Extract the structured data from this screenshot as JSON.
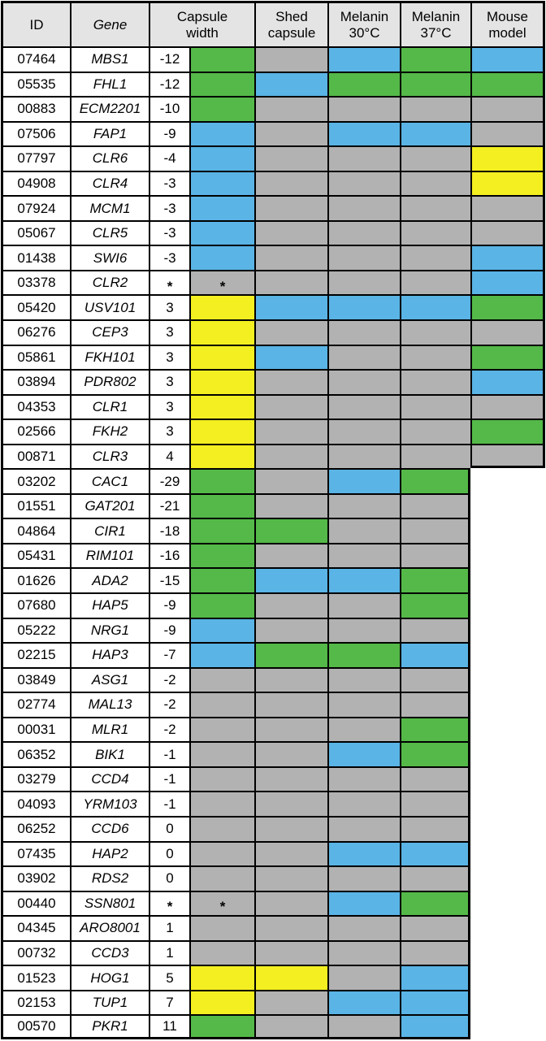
{
  "chart_data": {
    "type": "table",
    "title": "Gene deletion phenotype table",
    "columns": [
      "ID",
      "Gene",
      "Capsule width",
      "Shed capsule",
      "Melanin 30°C",
      "Melanin 37°C",
      "Mouse model"
    ],
    "header": {
      "id": "ID",
      "gene": "Gene",
      "capsule_width": "Capsule\nwidth",
      "shed_capsule": "Shed\ncapsule",
      "melanin_30": "Melanin\n30°C",
      "melanin_37": "Melanin\n37°C",
      "mouse_model": "Mouse\nmodel"
    },
    "color_key": {
      "green": "#54b948",
      "blue": "#5ab4e5",
      "yellow": "#f3ef21",
      "gray": "#b2b2b2"
    },
    "header_bg": "#e4e4e4",
    "asterisk_symbol": "*",
    "rows": [
      {
        "id": "07464",
        "gene": "MBS1",
        "capsule_width": "-12",
        "asterisk": false,
        "colors": {
          "capsule": "green",
          "shed": "gray",
          "melanin30": "blue",
          "melanin37": "green",
          "mouse": "blue"
        }
      },
      {
        "id": "05535",
        "gene": "FHL1",
        "capsule_width": "-12",
        "asterisk": false,
        "colors": {
          "capsule": "green",
          "shed": "blue",
          "melanin30": "green",
          "melanin37": "green",
          "mouse": "green"
        }
      },
      {
        "id": "00883",
        "gene": "ECM2201",
        "capsule_width": "-10",
        "asterisk": false,
        "colors": {
          "capsule": "green",
          "shed": "gray",
          "melanin30": "gray",
          "melanin37": "gray",
          "mouse": "gray"
        }
      },
      {
        "id": "07506",
        "gene": "FAP1",
        "capsule_width": "-9",
        "asterisk": false,
        "colors": {
          "capsule": "blue",
          "shed": "gray",
          "melanin30": "blue",
          "melanin37": "blue",
          "mouse": "gray"
        }
      },
      {
        "id": "07797",
        "gene": "CLR6",
        "capsule_width": "-4",
        "asterisk": false,
        "colors": {
          "capsule": "blue",
          "shed": "gray",
          "melanin30": "gray",
          "melanin37": "gray",
          "mouse": "yellow"
        }
      },
      {
        "id": "04908",
        "gene": "CLR4",
        "capsule_width": "-3",
        "asterisk": false,
        "colors": {
          "capsule": "blue",
          "shed": "gray",
          "melanin30": "gray",
          "melanin37": "gray",
          "mouse": "yellow"
        }
      },
      {
        "id": "07924",
        "gene": "MCM1",
        "capsule_width": "-3",
        "asterisk": false,
        "colors": {
          "capsule": "blue",
          "shed": "gray",
          "melanin30": "gray",
          "melanin37": "gray",
          "mouse": "gray"
        }
      },
      {
        "id": "05067",
        "gene": "CLR5",
        "capsule_width": "-3",
        "asterisk": false,
        "colors": {
          "capsule": "blue",
          "shed": "gray",
          "melanin30": "gray",
          "melanin37": "gray",
          "mouse": "gray"
        }
      },
      {
        "id": "01438",
        "gene": "SWI6",
        "capsule_width": "-3",
        "asterisk": false,
        "colors": {
          "capsule": "blue",
          "shed": "gray",
          "melanin30": "gray",
          "melanin37": "gray",
          "mouse": "blue"
        }
      },
      {
        "id": "03378",
        "gene": "CLR2",
        "capsule_width": "*",
        "asterisk": true,
        "colors": {
          "capsule": "gray",
          "shed": "gray",
          "melanin30": "gray",
          "melanin37": "gray",
          "mouse": "blue"
        }
      },
      {
        "id": "05420",
        "gene": "USV101",
        "capsule_width": "3",
        "asterisk": false,
        "colors": {
          "capsule": "yellow",
          "shed": "blue",
          "melanin30": "blue",
          "melanin37": "blue",
          "mouse": "green"
        }
      },
      {
        "id": "06276",
        "gene": "CEP3",
        "capsule_width": "3",
        "asterisk": false,
        "colors": {
          "capsule": "yellow",
          "shed": "gray",
          "melanin30": "gray",
          "melanin37": "gray",
          "mouse": "gray"
        }
      },
      {
        "id": "05861",
        "gene": "FKH101",
        "capsule_width": "3",
        "asterisk": false,
        "colors": {
          "capsule": "yellow",
          "shed": "blue",
          "melanin30": "gray",
          "melanin37": "gray",
          "mouse": "green"
        }
      },
      {
        "id": "03894",
        "gene": "PDR802",
        "capsule_width": "3",
        "asterisk": false,
        "colors": {
          "capsule": "yellow",
          "shed": "gray",
          "melanin30": "gray",
          "melanin37": "gray",
          "mouse": "blue"
        }
      },
      {
        "id": "04353",
        "gene": "CLR1",
        "capsule_width": "3",
        "asterisk": false,
        "colors": {
          "capsule": "yellow",
          "shed": "gray",
          "melanin30": "gray",
          "melanin37": "gray",
          "mouse": "gray"
        }
      },
      {
        "id": "02566",
        "gene": "FKH2",
        "capsule_width": "3",
        "asterisk": false,
        "colors": {
          "capsule": "yellow",
          "shed": "gray",
          "melanin30": "gray",
          "melanin37": "gray",
          "mouse": "green"
        }
      },
      {
        "id": "00871",
        "gene": "CLR3",
        "capsule_width": "4",
        "asterisk": false,
        "colors": {
          "capsule": "yellow",
          "shed": "gray",
          "melanin30": "gray",
          "melanin37": "gray",
          "mouse": "gray"
        }
      },
      {
        "id": "03202",
        "gene": "CAC1",
        "capsule_width": "-29",
        "asterisk": false,
        "colors": {
          "capsule": "green",
          "shed": "gray",
          "melanin30": "blue",
          "melanin37": "green",
          "mouse": null
        }
      },
      {
        "id": "01551",
        "gene": "GAT201",
        "capsule_width": "-21",
        "asterisk": false,
        "colors": {
          "capsule": "green",
          "shed": "gray",
          "melanin30": "gray",
          "melanin37": "gray",
          "mouse": null
        }
      },
      {
        "id": "04864",
        "gene": "CIR1",
        "capsule_width": "-18",
        "asterisk": false,
        "colors": {
          "capsule": "green",
          "shed": "green",
          "melanin30": "gray",
          "melanin37": "gray",
          "mouse": null
        }
      },
      {
        "id": "05431",
        "gene": "RIM101",
        "capsule_width": "-16",
        "asterisk": false,
        "colors": {
          "capsule": "green",
          "shed": "gray",
          "melanin30": "gray",
          "melanin37": "gray",
          "mouse": null
        }
      },
      {
        "id": "01626",
        "gene": "ADA2",
        "capsule_width": "-15",
        "asterisk": false,
        "colors": {
          "capsule": "green",
          "shed": "blue",
          "melanin30": "blue",
          "melanin37": "green",
          "mouse": null
        }
      },
      {
        "id": "07680",
        "gene": "HAP5",
        "capsule_width": "-9",
        "asterisk": false,
        "colors": {
          "capsule": "green",
          "shed": "gray",
          "melanin30": "gray",
          "melanin37": "green",
          "mouse": null
        }
      },
      {
        "id": "05222",
        "gene": "NRG1",
        "capsule_width": "-9",
        "asterisk": false,
        "colors": {
          "capsule": "blue",
          "shed": "gray",
          "melanin30": "gray",
          "melanin37": "gray",
          "mouse": null
        }
      },
      {
        "id": "02215",
        "gene": "HAP3",
        "capsule_width": "-7",
        "asterisk": false,
        "colors": {
          "capsule": "blue",
          "shed": "green",
          "melanin30": "green",
          "melanin37": "blue",
          "mouse": null
        }
      },
      {
        "id": "03849",
        "gene": "ASG1",
        "capsule_width": "-2",
        "asterisk": false,
        "colors": {
          "capsule": "gray",
          "shed": "gray",
          "melanin30": "gray",
          "melanin37": "gray",
          "mouse": null
        }
      },
      {
        "id": "02774",
        "gene": "MAL13",
        "capsule_width": "-2",
        "asterisk": false,
        "colors": {
          "capsule": "gray",
          "shed": "gray",
          "melanin30": "gray",
          "melanin37": "gray",
          "mouse": null
        }
      },
      {
        "id": "00031",
        "gene": "MLR1",
        "capsule_width": "-2",
        "asterisk": false,
        "colors": {
          "capsule": "gray",
          "shed": "gray",
          "melanin30": "gray",
          "melanin37": "green",
          "mouse": null
        }
      },
      {
        "id": "06352",
        "gene": "BIK1",
        "capsule_width": "-1",
        "asterisk": false,
        "colors": {
          "capsule": "gray",
          "shed": "gray",
          "melanin30": "blue",
          "melanin37": "green",
          "mouse": null
        }
      },
      {
        "id": "03279",
        "gene": "CCD4",
        "capsule_width": "-1",
        "asterisk": false,
        "colors": {
          "capsule": "gray",
          "shed": "gray",
          "melanin30": "gray",
          "melanin37": "gray",
          "mouse": null
        }
      },
      {
        "id": "04093",
        "gene": "YRM103",
        "capsule_width": "-1",
        "asterisk": false,
        "colors": {
          "capsule": "gray",
          "shed": "gray",
          "melanin30": "gray",
          "melanin37": "gray",
          "mouse": null
        }
      },
      {
        "id": "06252",
        "gene": "CCD6",
        "capsule_width": "0",
        "asterisk": false,
        "colors": {
          "capsule": "gray",
          "shed": "gray",
          "melanin30": "gray",
          "melanin37": "gray",
          "mouse": null
        }
      },
      {
        "id": "07435",
        "gene": "HAP2",
        "capsule_width": "0",
        "asterisk": false,
        "colors": {
          "capsule": "gray",
          "shed": "gray",
          "melanin30": "blue",
          "melanin37": "blue",
          "mouse": null
        }
      },
      {
        "id": "03902",
        "gene": "RDS2",
        "capsule_width": "0",
        "asterisk": false,
        "colors": {
          "capsule": "gray",
          "shed": "gray",
          "melanin30": "gray",
          "melanin37": "gray",
          "mouse": null
        }
      },
      {
        "id": "00440",
        "gene": "SSN801",
        "capsule_width": "*",
        "asterisk": true,
        "colors": {
          "capsule": "gray",
          "shed": "gray",
          "melanin30": "blue",
          "melanin37": "green",
          "mouse": null
        }
      },
      {
        "id": "04345",
        "gene": "ARO8001",
        "capsule_width": "1",
        "asterisk": false,
        "colors": {
          "capsule": "gray",
          "shed": "gray",
          "melanin30": "gray",
          "melanin37": "gray",
          "mouse": null
        }
      },
      {
        "id": "00732",
        "gene": "CCD3",
        "capsule_width": "1",
        "asterisk": false,
        "colors": {
          "capsule": "gray",
          "shed": "gray",
          "melanin30": "gray",
          "melanin37": "gray",
          "mouse": null
        }
      },
      {
        "id": "01523",
        "gene": "HOG1",
        "capsule_width": "5",
        "asterisk": false,
        "colors": {
          "capsule": "yellow",
          "shed": "yellow",
          "melanin30": "gray",
          "melanin37": "blue",
          "mouse": null
        }
      },
      {
        "id": "02153",
        "gene": "TUP1",
        "capsule_width": "7",
        "asterisk": false,
        "colors": {
          "capsule": "yellow",
          "shed": "gray",
          "melanin30": "blue",
          "melanin37": "blue",
          "mouse": null
        }
      },
      {
        "id": "00570",
        "gene": "PKR1",
        "capsule_width": "11",
        "asterisk": false,
        "colors": {
          "capsule": "green",
          "shed": "gray",
          "melanin30": "gray",
          "melanin37": "blue",
          "mouse": null
        }
      }
    ]
  }
}
